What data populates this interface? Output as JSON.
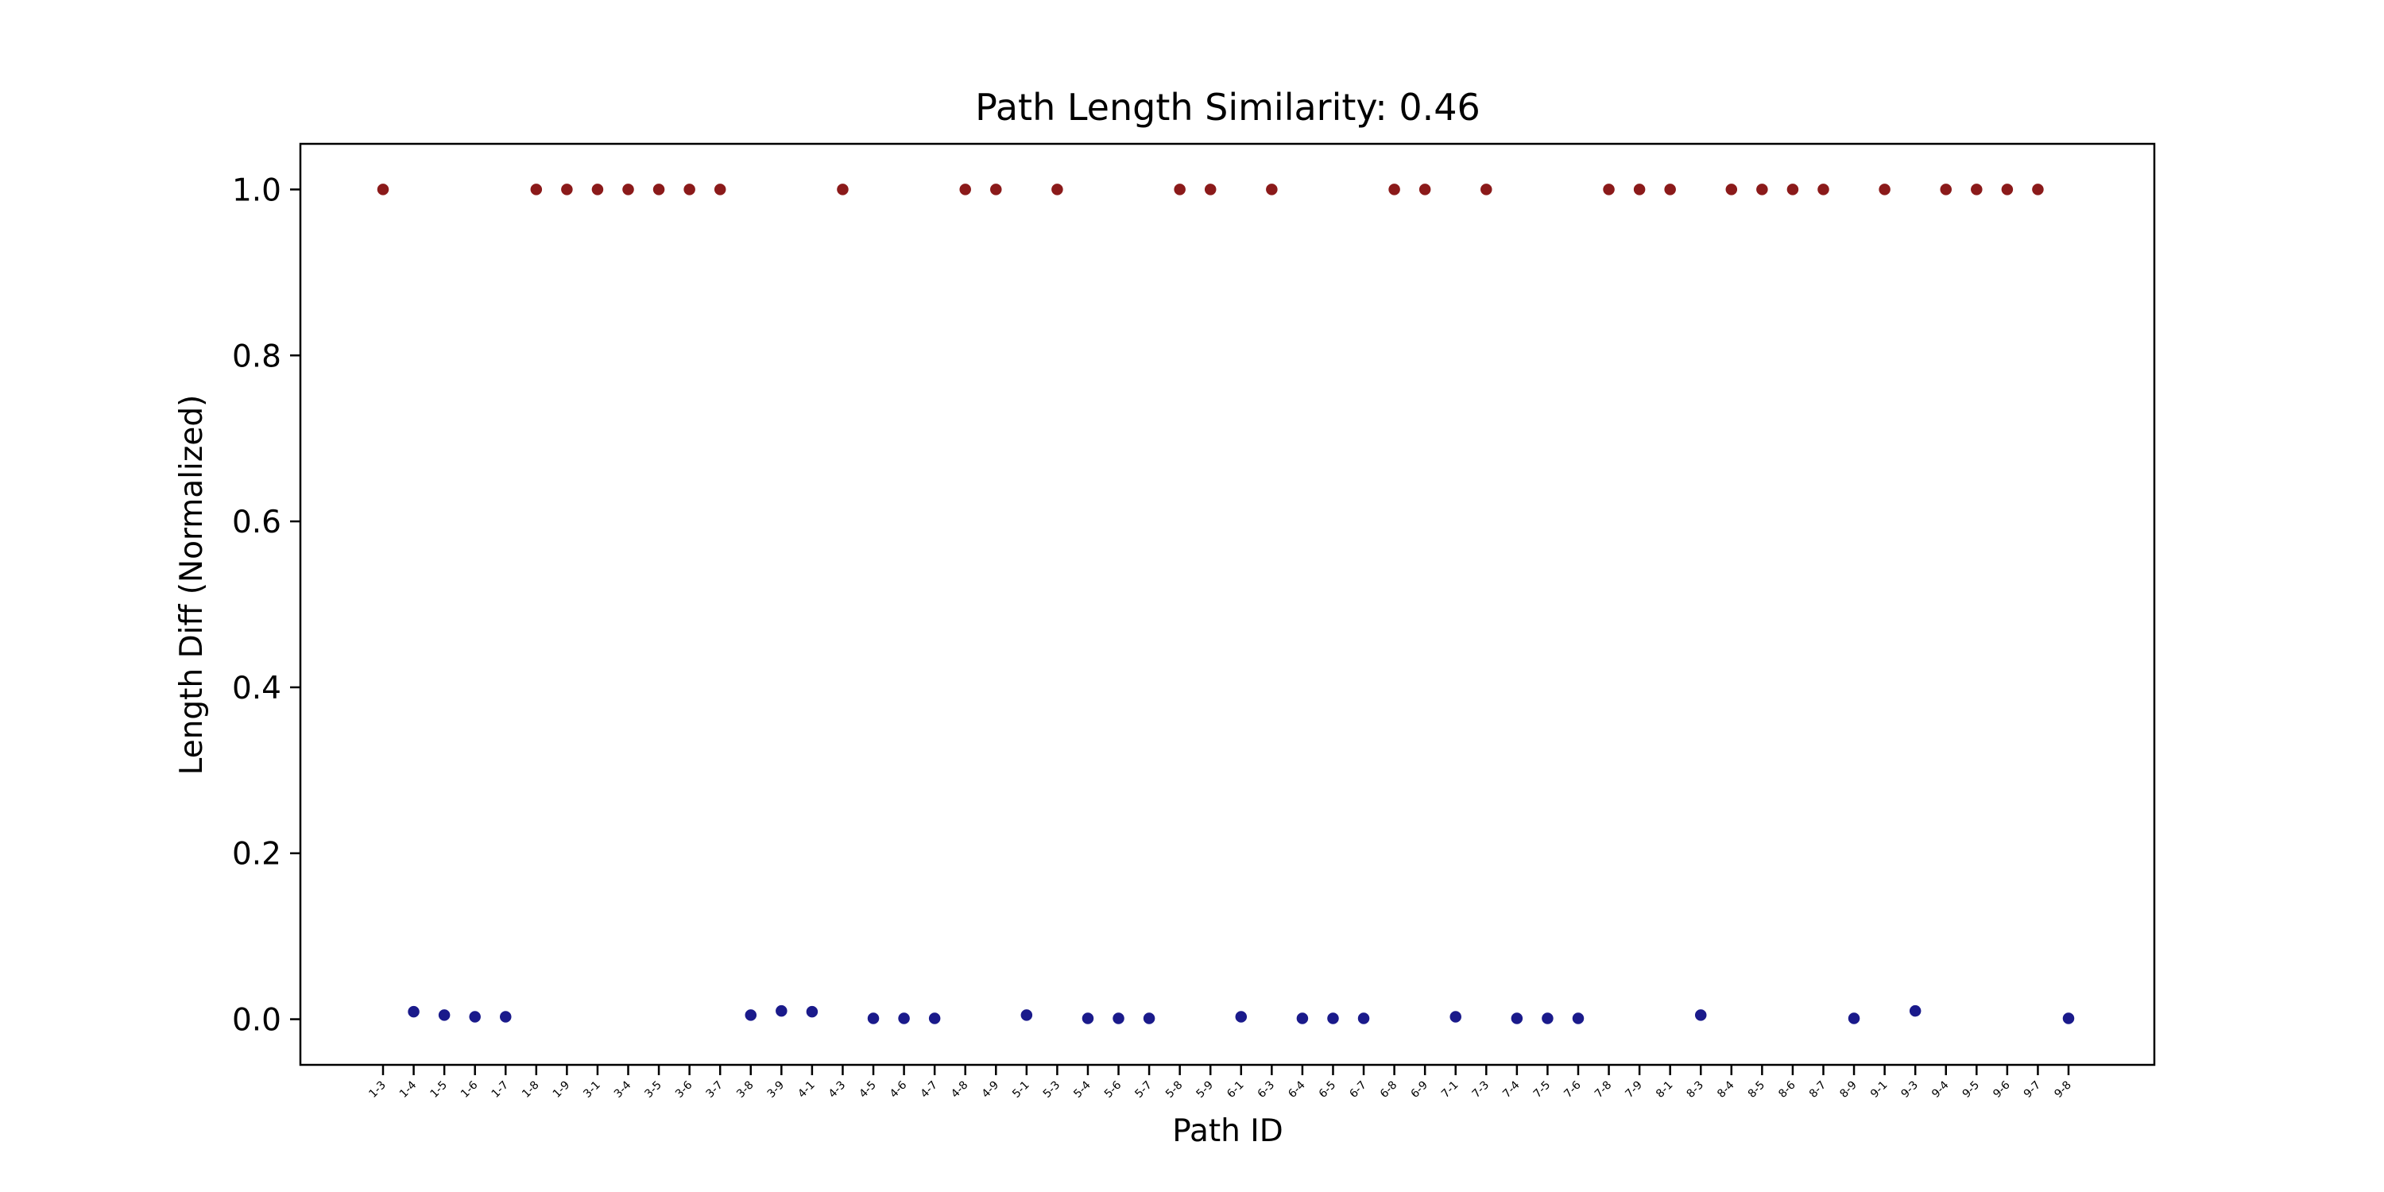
{
  "chart_data": {
    "type": "scatter",
    "title": "Path Length Similarity: 0.46",
    "xlabel": "Path ID",
    "ylabel": "Length Diff (Normalized)",
    "ylim": [
      -0.055,
      1.055
    ],
    "yticks": [
      "0.0",
      "0.2",
      "0.4",
      "0.6",
      "0.8",
      "1.0"
    ],
    "grid": false,
    "colors": {
      "high": "#8b1a1a",
      "low": "#1a1a8b"
    },
    "points": [
      {
        "id": "1-3",
        "y": 1.0
      },
      {
        "id": "1-4",
        "y": 0.009
      },
      {
        "id": "1-5",
        "y": 0.005
      },
      {
        "id": "1-6",
        "y": 0.003
      },
      {
        "id": "1-7",
        "y": 0.003
      },
      {
        "id": "1-8",
        "y": 1.0
      },
      {
        "id": "1-9",
        "y": 1.0
      },
      {
        "id": "3-1",
        "y": 1.0
      },
      {
        "id": "3-4",
        "y": 1.0
      },
      {
        "id": "3-5",
        "y": 1.0
      },
      {
        "id": "3-6",
        "y": 1.0
      },
      {
        "id": "3-7",
        "y": 1.0
      },
      {
        "id": "3-8",
        "y": 0.005
      },
      {
        "id": "3-9",
        "y": 0.01
      },
      {
        "id": "4-1",
        "y": 0.009
      },
      {
        "id": "4-3",
        "y": 1.0
      },
      {
        "id": "4-5",
        "y": 0.001
      },
      {
        "id": "4-6",
        "y": 0.001
      },
      {
        "id": "4-7",
        "y": 0.001
      },
      {
        "id": "4-8",
        "y": 1.0
      },
      {
        "id": "4-9",
        "y": 1.0
      },
      {
        "id": "5-1",
        "y": 0.005
      },
      {
        "id": "5-3",
        "y": 1.0
      },
      {
        "id": "5-4",
        "y": 0.001
      },
      {
        "id": "5-6",
        "y": 0.001
      },
      {
        "id": "5-7",
        "y": 0.001
      },
      {
        "id": "5-8",
        "y": 1.0
      },
      {
        "id": "5-9",
        "y": 1.0
      },
      {
        "id": "6-1",
        "y": 0.003
      },
      {
        "id": "6-3",
        "y": 1.0
      },
      {
        "id": "6-4",
        "y": 0.001
      },
      {
        "id": "6-5",
        "y": 0.001
      },
      {
        "id": "6-7",
        "y": 0.001
      },
      {
        "id": "6-8",
        "y": 1.0
      },
      {
        "id": "6-9",
        "y": 1.0
      },
      {
        "id": "7-1",
        "y": 0.003
      },
      {
        "id": "7-3",
        "y": 1.0
      },
      {
        "id": "7-4",
        "y": 0.001
      },
      {
        "id": "7-5",
        "y": 0.001
      },
      {
        "id": "7-6",
        "y": 0.001
      },
      {
        "id": "7-8",
        "y": 1.0
      },
      {
        "id": "7-9",
        "y": 1.0
      },
      {
        "id": "8-1",
        "y": 1.0
      },
      {
        "id": "8-3",
        "y": 0.005
      },
      {
        "id": "8-4",
        "y": 1.0
      },
      {
        "id": "8-5",
        "y": 1.0
      },
      {
        "id": "8-6",
        "y": 1.0
      },
      {
        "id": "8-7",
        "y": 1.0
      },
      {
        "id": "8-9",
        "y": 0.001
      },
      {
        "id": "9-1",
        "y": 1.0
      },
      {
        "id": "9-3",
        "y": 0.01
      },
      {
        "id": "9-4",
        "y": 1.0
      },
      {
        "id": "9-5",
        "y": 1.0
      },
      {
        "id": "9-6",
        "y": 1.0
      },
      {
        "id": "9-7",
        "y": 1.0
      },
      {
        "id": "9-8",
        "y": 0.001
      }
    ]
  }
}
